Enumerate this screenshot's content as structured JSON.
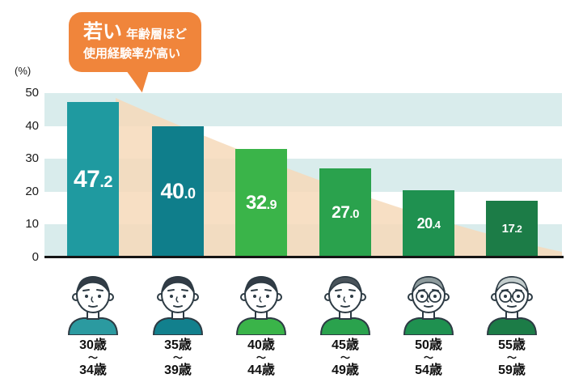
{
  "callout": {
    "emphasis": "若い",
    "line1_rest": "年齢層ほど",
    "line2": "使用経験率が高い",
    "bg_color": "#f0853b"
  },
  "y_axis": {
    "unit": "(%)",
    "ticks": [
      "50",
      "40",
      "30",
      "20",
      "10",
      "0"
    ]
  },
  "chart_data": {
    "type": "bar",
    "categories": [
      "30歳〜34歳",
      "35歳〜39歳",
      "40歳〜44歳",
      "45歳〜49歳",
      "50歳〜54歳",
      "55歳〜59歳"
    ],
    "values": [
      47.2,
      40.0,
      32.9,
      27.0,
      20.4,
      17.2
    ],
    "value_labels": [
      "47.2",
      "40.0",
      "32.9",
      "27.0",
      "20.4",
      "17.2"
    ],
    "ylim": [
      0,
      50
    ],
    "yticks": [
      0,
      10,
      20,
      30,
      40,
      50
    ],
    "ylabel": "(%)",
    "annotation": "若い年齢層ほど使用経験率が高い",
    "bar_colors": [
      "#1f9aa0",
      "#0f7e8b",
      "#3ab449",
      "#2aa24d",
      "#1f9150",
      "#1c7c47"
    ],
    "background_band_color": "#d9ecec",
    "trend_wedge_color": "#f6d9ba",
    "grid": "striped-bands",
    "legend": "none"
  },
  "age_groups": [
    {
      "from": "30歳",
      "separator": "〜",
      "to": "34歳"
    },
    {
      "from": "35歳",
      "separator": "〜",
      "to": "39歳"
    },
    {
      "from": "40歳",
      "separator": "〜",
      "to": "44歳"
    },
    {
      "from": "45歳",
      "separator": "〜",
      "to": "49歳"
    },
    {
      "from": "50歳",
      "separator": "〜",
      "to": "54歳"
    },
    {
      "from": "55歳",
      "separator": "〜",
      "to": "59歳"
    }
  ],
  "people": [
    {
      "icon": "person-age-30-34-icon",
      "shirt_color": "#2b9aa0",
      "hair_color": "#323c46",
      "glasses": false
    },
    {
      "icon": "person-age-35-39-icon",
      "shirt_color": "#12808d",
      "hair_color": "#323c46",
      "glasses": false
    },
    {
      "icon": "person-age-40-44-icon",
      "shirt_color": "#3ab449",
      "hair_color": "#323c46",
      "glasses": false
    },
    {
      "icon": "person-age-45-49-icon",
      "shirt_color": "#2aa24d",
      "hair_color": "#49535a",
      "glasses": false
    },
    {
      "icon": "person-age-50-54-icon",
      "shirt_color": "#1f9150",
      "hair_color": "#8d9a9c",
      "glasses": true
    },
    {
      "icon": "person-age-55-59-icon",
      "shirt_color": "#1c7c47",
      "hair_color": "#c3cdcd",
      "glasses": true
    }
  ]
}
